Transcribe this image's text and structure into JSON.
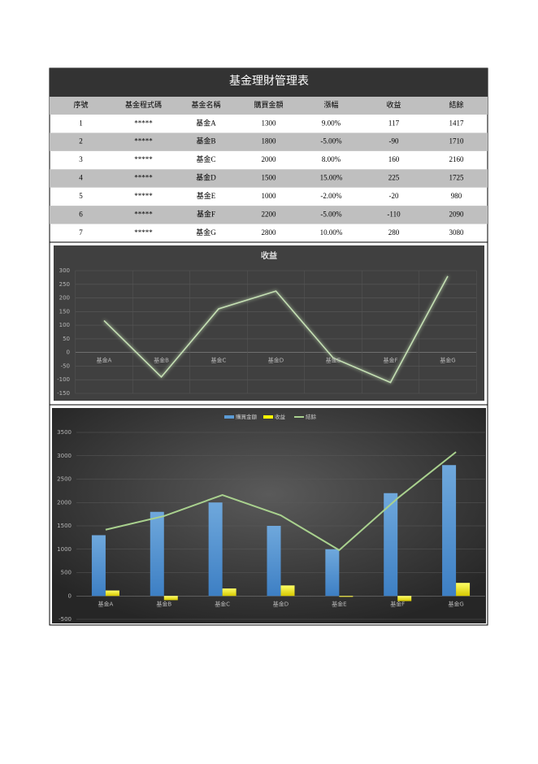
{
  "header": {
    "title": "基金理財管理表"
  },
  "table": {
    "headers": [
      "序號",
      "基金程式碼",
      "基金名稱",
      "購買金額",
      "漲幅",
      "收益",
      "結餘"
    ],
    "rows": [
      [
        1,
        "*****",
        "基金A",
        1300,
        "9.00%",
        117,
        1417
      ],
      [
        2,
        "*****",
        "基金B",
        1800,
        "-5.00%",
        -90,
        1710
      ],
      [
        3,
        "*****",
        "基金C",
        2000,
        "8.00%",
        160,
        2160
      ],
      [
        4,
        "*****",
        "基金D",
        1500,
        "15.00%",
        225,
        1725
      ],
      [
        5,
        "*****",
        "基金E",
        1000,
        "-2.00%",
        -20,
        980
      ],
      [
        6,
        "*****",
        "基金F",
        2200,
        "-5.00%",
        -110,
        2090
      ],
      [
        7,
        "*****",
        "基金G",
        2800,
        "10.00%",
        280,
        3080
      ]
    ]
  },
  "chart_data": [
    {
      "type": "line",
      "title": "收益",
      "categories": [
        "基金A",
        "基金B",
        "基金C",
        "基金D",
        "基金E",
        "基金F",
        "基金G"
      ],
      "values": [
        117,
        -90,
        160,
        225,
        -20,
        -110,
        280
      ],
      "color": "#c5e0b4",
      "ylim": [
        -150,
        300
      ],
      "yticks": [
        300,
        250,
        200,
        150,
        100,
        50,
        0,
        -50,
        -100,
        -150
      ],
      "grid": true
    },
    {
      "type": "combo",
      "categories": [
        "基金A",
        "基金B",
        "基金C",
        "基金D",
        "基金E",
        "基金F",
        "基金G"
      ],
      "series": [
        {
          "name": "購買金額",
          "type": "bar",
          "color": "#5b9bd5",
          "values": [
            1300,
            1800,
            2000,
            1500,
            1000,
            2200,
            2800
          ]
        },
        {
          "name": "收益",
          "type": "bar",
          "color": "#ffff00",
          "values": [
            117,
            -90,
            160,
            225,
            -20,
            -110,
            280
          ]
        },
        {
          "name": "結餘",
          "type": "line",
          "color": "#a9d18e",
          "values": [
            1417,
            1710,
            2160,
            1725,
            980,
            2090,
            3080
          ]
        }
      ],
      "ylim": [
        -500,
        3500
      ],
      "yticks": [
        3500,
        3000,
        2500,
        2000,
        1500,
        1000,
        500,
        0,
        -500
      ],
      "grid": true,
      "legend": "top"
    }
  ]
}
